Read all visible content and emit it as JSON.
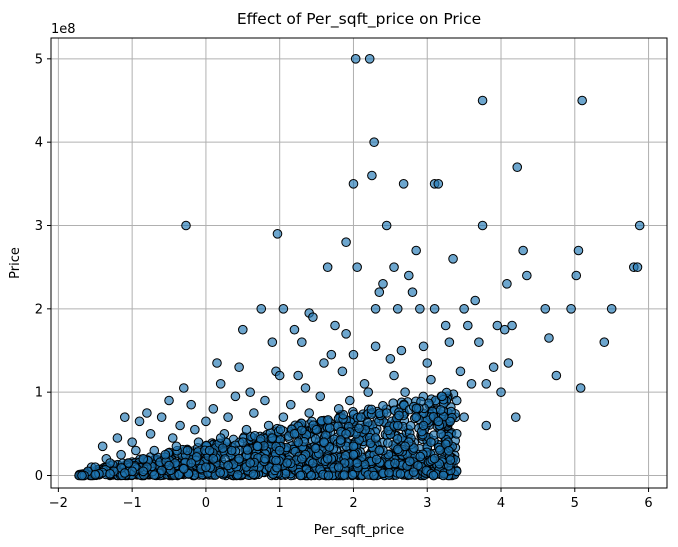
{
  "chart_data": {
    "type": "scatter",
    "title": "Effect of Per_sqft_price on Price",
    "xlabel": "Per_sqft_price",
    "ylabel": "Price",
    "y_offset_label": "1e8",
    "xlim": [
      -2.1,
      6.25
    ],
    "ylim": [
      -0.15,
      5.25
    ],
    "xticks": [
      -2,
      -1,
      0,
      1,
      2,
      3,
      4,
      5,
      6
    ],
    "xtick_labels": [
      "−2",
      "−1",
      "0",
      "1",
      "2",
      "3",
      "4",
      "5",
      "6"
    ],
    "yticks": [
      0,
      1,
      2,
      3,
      4,
      5
    ],
    "ytick_labels": [
      "0",
      "1",
      "2",
      "3",
      "4",
      "5"
    ],
    "grid": true,
    "point_color": "#1f77b4",
    "point_alpha": 0.65,
    "note": "y values in units of 1e8",
    "series": [
      {
        "x": [
          2.03,
          2.22,
          3.75,
          5.1,
          2.28,
          4.22,
          2.0,
          2.25,
          2.68,
          3.1,
          3.15,
          -0.27,
          0.97,
          2.45,
          3.75,
          5.88,
          1.9,
          2.85,
          4.3,
          5.05,
          2.05,
          4.08,
          5.8,
          5.85,
          2.4,
          2.55,
          2.75,
          3.35,
          4.35,
          2.35,
          1.65,
          2.3,
          2.8,
          2.9,
          3.1,
          3.5,
          3.65,
          4.6,
          4.95,
          5.02,
          5.5,
          1.05,
          1.4,
          1.75,
          2.6,
          3.25,
          3.55,
          3.95,
          4.15,
          4.65,
          0.75,
          1.2,
          1.45,
          1.9,
          2.3,
          2.65,
          2.95,
          3.3,
          3.7,
          4.05,
          5.4,
          0.5,
          0.9,
          1.3,
          1.7,
          2.0,
          2.5,
          3.0,
          3.45,
          3.9,
          4.1,
          4.75,
          0.15,
          0.45,
          0.95,
          1.25,
          1.6,
          2.15,
          2.55,
          3.05,
          3.6,
          3.8,
          4.0,
          5.08,
          -0.3,
          0.2,
          0.6,
          1.0,
          1.35,
          1.85,
          2.2,
          2.7,
          3.2,
          3.4,
          3.5,
          -0.8,
          -0.5,
          -0.2,
          0.1,
          0.4,
          0.8,
          1.15,
          1.55,
          1.95,
          2.45,
          2.85,
          3.15,
          -1.1,
          -0.9,
          -0.6,
          -0.35,
          0.0,
          0.3,
          0.65,
          1.05,
          1.4,
          1.8,
          2.1,
          2.6,
          2.95,
          -1.4,
          -1.2,
          -1.0,
          -0.75,
          -0.45,
          -0.15,
          0.25,
          0.55,
          0.85,
          1.2,
          1.5,
          1.9,
          2.3,
          2.75,
          -1.55,
          -1.35,
          -1.15,
          -0.95,
          -0.7,
          -0.4,
          -0.1,
          0.2,
          0.5,
          0.9,
          1.25,
          1.6,
          2.0,
          2.4,
          -1.7,
          -1.6,
          -1.5,
          -1.3,
          -1.05,
          -0.85,
          -0.55,
          -0.25,
          0.05,
          0.35,
          0.7,
          1.0,
          1.35,
          1.7,
          2.05,
          -1.72,
          -1.65,
          -1.45,
          -1.25,
          -1.0,
          -0.8,
          -0.5,
          -0.2,
          0.1,
          0.45,
          0.8,
          1.1,
          1.45,
          1.8,
          -1.68,
          -1.5,
          -1.3,
          -1.1,
          -0.85,
          -0.6,
          -0.3,
          0.0,
          0.3,
          0.6,
          0.95,
          1.3,
          1.65,
          2.0,
          2.35,
          2.7,
          3.05,
          3.4,
          3.8,
          4.2
        ],
        "y": [
          5.0,
          5.0,
          4.5,
          4.5,
          4.0,
          3.7,
          3.5,
          3.6,
          3.5,
          3.5,
          3.5,
          3.0,
          2.9,
          3.0,
          3.0,
          3.0,
          2.8,
          2.7,
          2.7,
          2.7,
          2.5,
          2.3,
          2.5,
          2.5,
          2.3,
          2.5,
          2.4,
          2.6,
          2.4,
          2.2,
          2.5,
          2.0,
          2.2,
          2.0,
          2.0,
          2.0,
          2.1,
          2.0,
          2.0,
          2.4,
          2.0,
          2.0,
          1.95,
          1.8,
          2.0,
          1.8,
          1.8,
          1.8,
          1.8,
          1.65,
          2.0,
          1.75,
          1.9,
          1.7,
          1.55,
          1.5,
          1.55,
          1.6,
          1.6,
          1.75,
          1.6,
          1.75,
          1.6,
          1.6,
          1.45,
          1.45,
          1.4,
          1.35,
          1.25,
          1.3,
          1.35,
          1.2,
          1.35,
          1.3,
          1.25,
          1.2,
          1.35,
          1.1,
          1.2,
          1.15,
          1.1,
          1.1,
          1.0,
          1.05,
          1.05,
          1.1,
          1.0,
          1.2,
          1.05,
          1.25,
          1.0,
          1.0,
          0.95,
          0.9,
          0.7,
          0.75,
          0.9,
          0.85,
          0.8,
          0.95,
          0.9,
          0.85,
          0.95,
          0.9,
          0.75,
          0.7,
          0.65,
          0.7,
          0.65,
          0.7,
          0.6,
          0.65,
          0.7,
          0.75,
          0.7,
          0.75,
          0.8,
          0.7,
          0.6,
          0.6,
          0.35,
          0.45,
          0.4,
          0.5,
          0.45,
          0.55,
          0.5,
          0.55,
          0.6,
          0.5,
          0.55,
          0.5,
          0.45,
          0.4,
          0.1,
          0.2,
          0.25,
          0.3,
          0.3,
          0.35,
          0.4,
          0.45,
          0.4,
          0.45,
          0.4,
          0.4,
          0.35,
          0.3,
          0.0,
          0.05,
          0.1,
          0.15,
          0.15,
          0.2,
          0.25,
          0.3,
          0.3,
          0.3,
          0.35,
          0.3,
          0.25,
          0.2,
          0.15,
          0.0,
          0.0,
          0.02,
          0.05,
          0.05,
          0.1,
          0.12,
          0.15,
          0.2,
          0.2,
          0.2,
          0.15,
          0.15,
          0.1,
          0.0,
          0.01,
          0.02,
          0.03,
          0.05,
          0.06,
          0.08,
          0.1,
          0.12,
          0.15,
          0.18,
          0.2,
          0.2,
          0.25,
          0.3,
          0.35,
          0.4,
          0.5,
          0.6,
          0.7
        ]
      }
    ],
    "cluster": {
      "x_min": -1.72,
      "x_max": 3.4,
      "description_free": true
    }
  }
}
